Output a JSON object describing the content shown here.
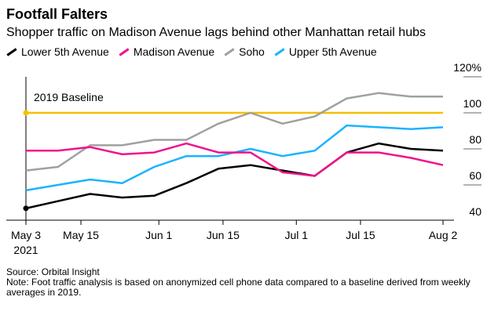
{
  "chart_data": {
    "type": "line",
    "title": "Footfall Falters",
    "subtitle": "Shopper traffic on Madison Avenue lags behind other Manhattan retail hubs",
    "x": [
      "2021-05-03",
      "2021-05-10",
      "2021-05-17",
      "2021-05-24",
      "2021-05-31",
      "2021-06-07",
      "2021-06-14",
      "2021-06-21",
      "2021-06-28",
      "2021-07-05",
      "2021-07-12",
      "2021-07-19",
      "2021-07-26",
      "2021-08-02"
    ],
    "x_ticks": [
      {
        "date": "2021-05-03",
        "label": "May 3",
        "sublabel": "2021"
      },
      {
        "date": "2021-05-15",
        "label": "May 15"
      },
      {
        "date": "2021-06-01",
        "label": "Jun 1"
      },
      {
        "date": "2021-06-15",
        "label": "Jun 15"
      },
      {
        "date": "2021-07-01",
        "label": "Jul 1"
      },
      {
        "date": "2021-07-15",
        "label": "Jul 15"
      },
      {
        "date": "2021-08-02",
        "label": "Aug 2"
      }
    ],
    "y_ticks": [
      {
        "value": 120,
        "label": "120%"
      },
      {
        "value": 100,
        "label": "100"
      },
      {
        "value": 80,
        "label": "80"
      },
      {
        "value": 60,
        "label": "60"
      },
      {
        "value": 40,
        "label": "40"
      }
    ],
    "ylim": [
      40,
      120
    ],
    "y_axis_side": "right",
    "grid": false,
    "legend_placement": "top",
    "baseline": {
      "value": 100,
      "label": "2019 Baseline",
      "color": "#F5C000"
    },
    "series": [
      {
        "name": "Lower 5th Avenue",
        "color": "#000000",
        "values": [
          47,
          51,
          55,
          53,
          54,
          61,
          69,
          71,
          68,
          65,
          78,
          83,
          80,
          79
        ]
      },
      {
        "name": "Madison Avenue",
        "color": "#F0128C",
        "values": [
          79,
          79,
          81,
          77,
          78,
          83,
          78,
          78,
          67,
          65,
          78,
          78,
          75,
          71
        ]
      },
      {
        "name": "Soho",
        "color": "#A0A0A0",
        "values": [
          68,
          70,
          82,
          82,
          85,
          85,
          94,
          100,
          94,
          98,
          108,
          111,
          109,
          109
        ]
      },
      {
        "name": "Upper 5th Avenue",
        "color": "#1AB3FF",
        "values": [
          57,
          60,
          63,
          61,
          70,
          76,
          76,
          80,
          76,
          79,
          93,
          92,
          91,
          92
        ]
      }
    ]
  },
  "source": "Source: Orbital Insight",
  "note": "Note: Foot traffic analysis is based on anonymized cell phone data compared to a baseline derived from weekly averages in 2019."
}
